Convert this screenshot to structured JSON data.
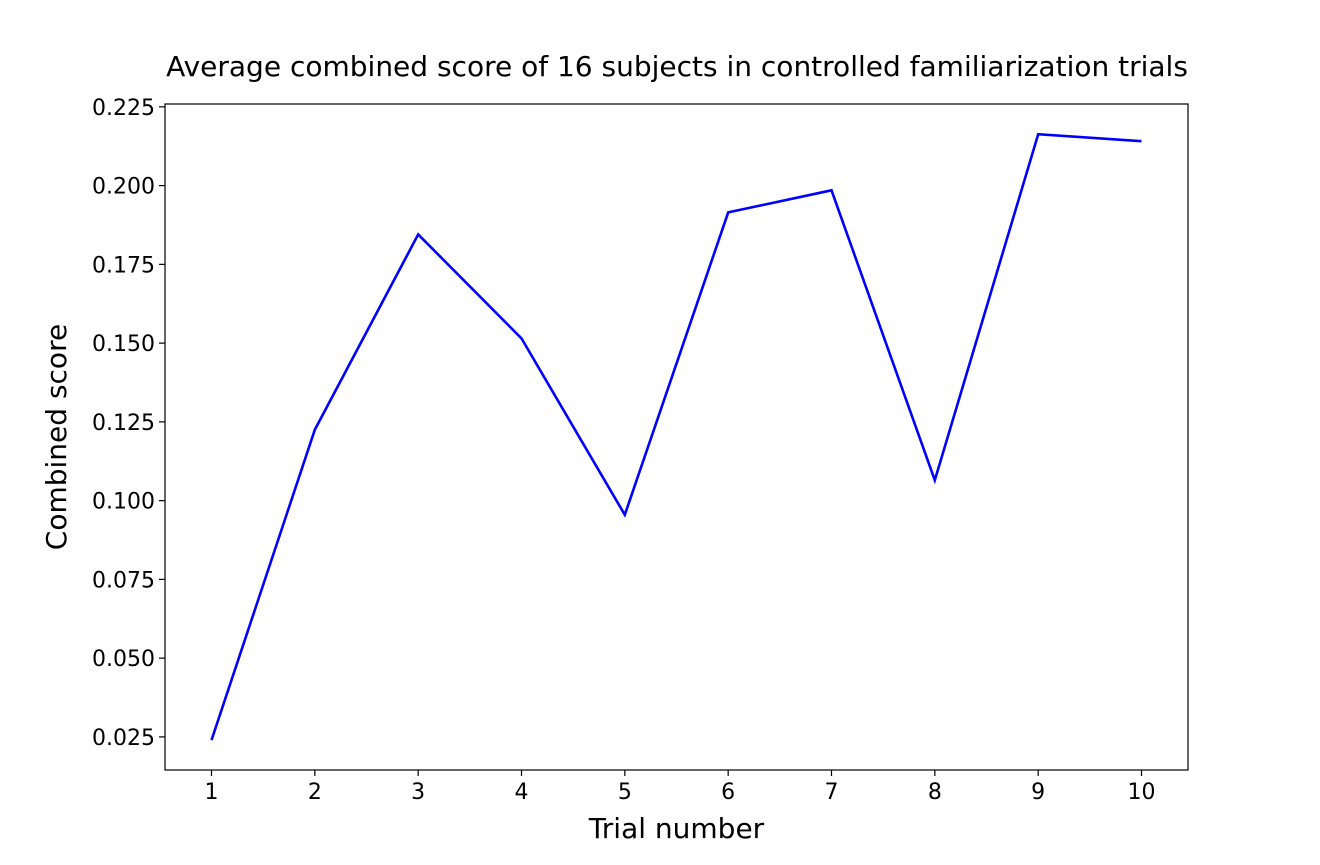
{
  "chart_data": {
    "type": "line",
    "title": "Average combined score of 16 subjects in controlled familiarization trials",
    "xlabel": "Trial number",
    "ylabel": "Combined score",
    "x": [
      1,
      2,
      3,
      4,
      5,
      6,
      7,
      8,
      9,
      10
    ],
    "series": [
      {
        "color": "#0000ff",
        "values": [
          0.024,
          0.1225,
          0.1845,
          0.1515,
          0.0955,
          0.1915,
          0.1985,
          0.1065,
          0.2163,
          0.2141
        ]
      }
    ],
    "xticks": [
      "1",
      "2",
      "3",
      "4",
      "5",
      "6",
      "7",
      "8",
      "9",
      "10"
    ],
    "yticks": [
      "0.025",
      "0.050",
      "0.075",
      "0.100",
      "0.125",
      "0.150",
      "0.175",
      "0.200",
      "0.225"
    ],
    "xlim": [
      0.55,
      10.45
    ],
    "ylim": [
      0.0145,
      0.2259
    ],
    "grid": false
  }
}
